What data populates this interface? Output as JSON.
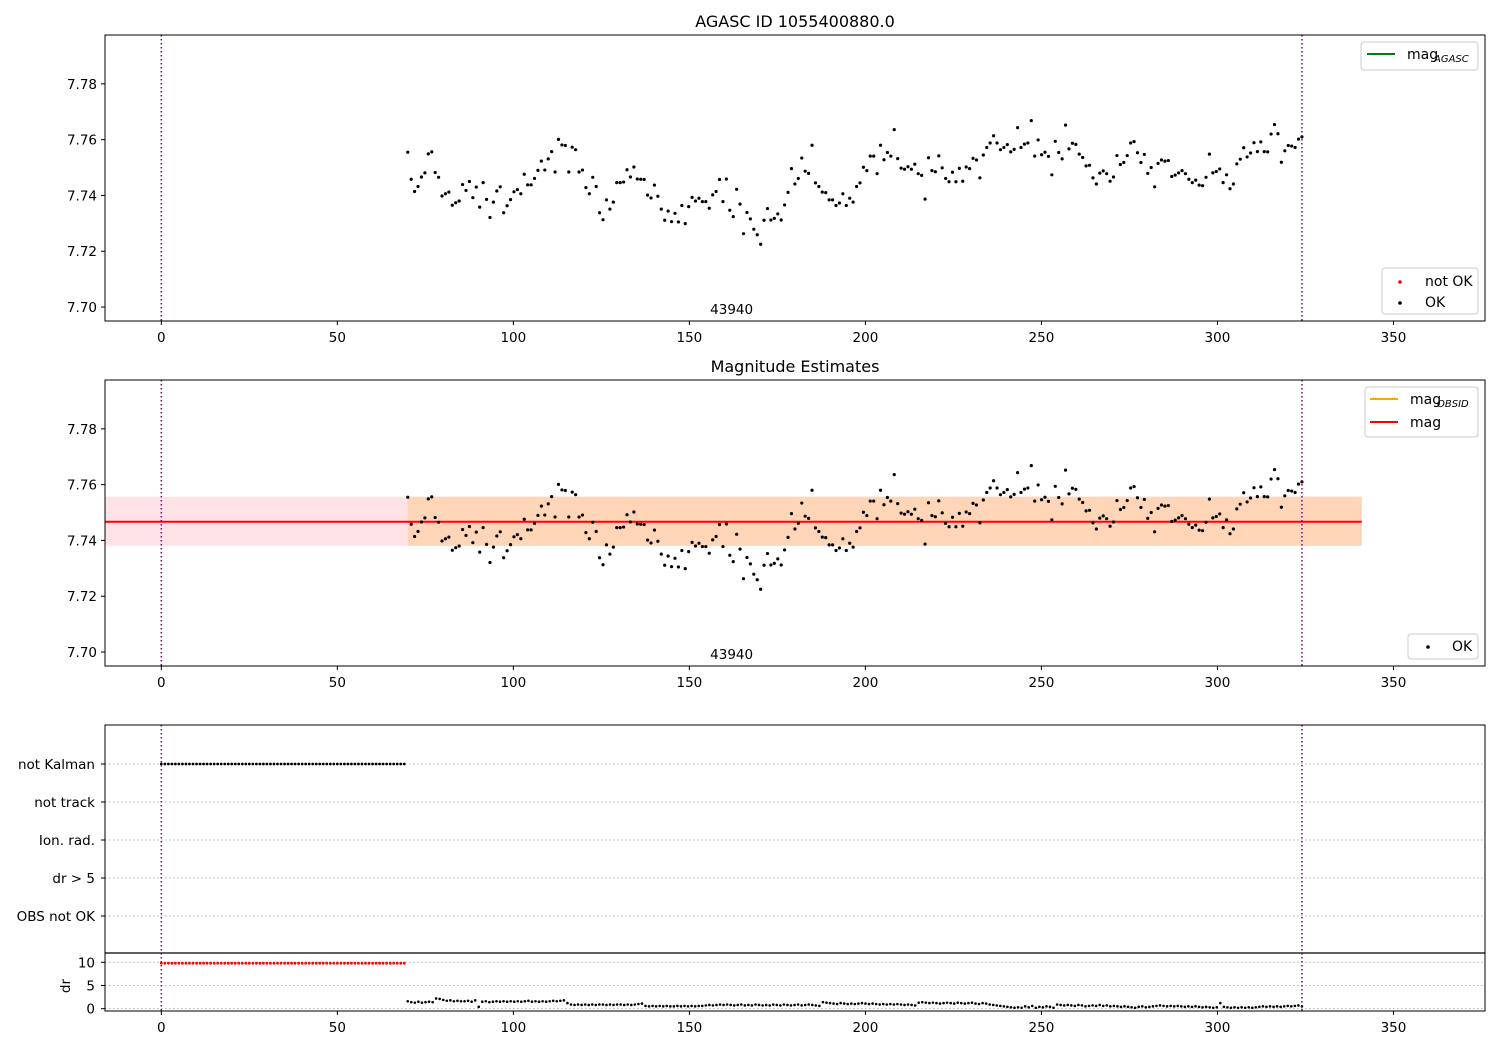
{
  "chart_data": [
    {
      "type": "scatter",
      "title": "AGASC ID 1055400880.0",
      "xlim": [
        -16,
        376
      ],
      "ylim": [
        7.695,
        7.7975
      ],
      "xticks": [
        0,
        50,
        100,
        150,
        200,
        250,
        300,
        350
      ],
      "yticks": [
        "7.70",
        "7.72",
        "7.74",
        "7.76",
        "7.78"
      ],
      "vlines": [
        0,
        324
      ],
      "annotation": {
        "text": "43940",
        "x": 162,
        "y": 7.6975
      },
      "legend_upper": [
        {
          "label": "mag",
          "sub": "AGASC",
          "color": "#008000"
        }
      ],
      "legend_lower": [
        {
          "label": "not OK",
          "color": "#ff0000"
        },
        {
          "label": "OK",
          "color": "#000000"
        }
      ],
      "series": [
        {
          "name": "OK",
          "color": "#000000",
          "x_start": 70,
          "x_end": 324,
          "y": [
            7.7555,
            7.7458,
            7.7414,
            7.7432,
            7.7466,
            7.7481,
            7.7549,
            7.7556,
            7.7482,
            7.7465,
            7.7398,
            7.7406,
            7.7412,
            7.7365,
            7.7374,
            7.738,
            7.7439,
            7.7418,
            7.745,
            7.7392,
            7.743,
            7.7358,
            7.7446,
            7.7386,
            7.7321,
            7.7376,
            7.7416,
            7.7431,
            7.7338,
            7.7363,
            7.7385,
            7.7413,
            7.7421,
            7.7406,
            7.7476,
            7.7438,
            7.7438,
            7.7461,
            7.749,
            7.7523,
            7.7491,
            7.7531,
            7.7557,
            7.7484,
            7.7601,
            7.7581,
            7.7579,
            7.7484,
            7.7573,
            7.7564,
            7.7484,
            7.7491,
            7.7428,
            7.7406,
            7.7465,
            7.7432,
            7.7338,
            7.7313,
            7.7384,
            7.7351,
            7.7376,
            7.7446,
            7.7446,
            7.7448,
            7.7492,
            7.7466,
            7.7502,
            7.7459,
            7.7458,
            7.7457,
            7.7401,
            7.7391,
            7.7437,
            7.7397,
            7.7351,
            7.7311,
            7.7344,
            7.7306,
            7.7336,
            7.7305,
            7.7364,
            7.7299,
            7.736,
            7.7393,
            7.738,
            7.739,
            7.7378,
            7.7378,
            7.7354,
            7.7402,
            7.7414,
            7.7457,
            7.7378,
            7.7459,
            7.7347,
            7.7324,
            7.7422,
            7.7369,
            7.7263,
            7.7339,
            7.7316,
            7.7279,
            7.7259,
            7.7225,
            7.7311,
            7.7353,
            7.7312,
            7.7318,
            7.7334,
            7.7312,
            7.7366,
            7.7411,
            7.7496,
            7.7441,
            7.7461,
            7.7534,
            7.7487,
            7.7479,
            7.758,
            7.7445,
            7.7432,
            7.7412,
            7.741,
            7.7384,
            7.7384,
            7.7364,
            7.7373,
            7.7406,
            7.7364,
            7.739,
            7.7376,
            7.7432,
            7.7445,
            7.7501,
            7.7489,
            7.7541,
            7.7541,
            7.7478,
            7.758,
            7.7528,
            7.7554,
            7.7541,
            7.7636,
            7.7532,
            7.7498,
            7.7494,
            7.7503,
            7.7494,
            7.7512,
            7.7478,
            7.7472,
            7.7387,
            7.7535,
            7.7489,
            7.7485,
            7.7542,
            7.7499,
            7.7461,
            7.7449,
            7.7483,
            7.7449,
            7.7497,
            7.7451,
            7.7502,
            7.7496,
            7.7533,
            7.7527,
            7.7463,
            7.7545,
            7.7572,
            7.7588,
            7.7614,
            7.7588,
            7.7564,
            7.7572,
            7.7582,
            7.7556,
            7.7565,
            7.7643,
            7.7572,
            7.7584,
            7.7588,
            7.7668,
            7.7541,
            7.7599,
            7.7546,
            7.7555,
            7.754,
            7.7474,
            7.7594,
            7.7554,
            7.7531,
            7.7652,
            7.7567,
            7.7587,
            7.7583,
            7.7548,
            7.7536,
            7.7506,
            7.7508,
            7.7463,
            7.7441,
            7.748,
            7.7488,
            7.7478,
            7.7451,
            7.7466,
            7.7543,
            7.7511,
            7.7518,
            7.7543,
            7.7588,
            7.7593,
            7.7553,
            7.7518,
            7.7547,
            7.7479,
            7.75,
            7.7431,
            7.7515,
            7.7527,
            7.7523,
            7.7525,
            7.7468,
            7.7473,
            7.7481,
            7.7489,
            7.7478,
            7.7458,
            7.7446,
            7.7455,
            7.7437,
            7.7435,
            7.7465,
            7.7548,
            7.7481,
            7.7486,
            7.7495,
            7.7446,
            7.7474,
            7.7424,
            7.7441,
            7.7513,
            7.753,
            7.7571,
            7.7538,
            7.7552,
            7.7589,
            7.7557,
            7.7592,
            7.7557,
            7.7556,
            7.762,
            7.7654,
            7.7621,
            7.7519,
            7.756,
            7.7579,
            7.7577,
            7.7572,
            7.7602,
            7.761
          ]
        }
      ]
    },
    {
      "type": "scatter",
      "title": "Magnitude Estimates",
      "xlim": [
        -16,
        376
      ],
      "ylim": [
        7.695,
        7.7975
      ],
      "xticks": [
        0,
        50,
        100,
        150,
        200,
        250,
        300,
        350
      ],
      "yticks": [
        "7.70",
        "7.72",
        "7.74",
        "7.76",
        "7.78"
      ],
      "vlines": [
        0,
        324
      ],
      "annotation": {
        "text": "43940",
        "x": 162,
        "y": 7.6975
      },
      "mag": {
        "value": 7.7467,
        "low": 7.7381,
        "high": 7.7557,
        "x_range": [
          -16,
          341
        ],
        "color": "#ff0000",
        "band_color": "#ffb6c1"
      },
      "mag_obsid": {
        "value": 7.7467,
        "low": 7.7381,
        "high": 7.7557,
        "x_range": [
          70,
          341
        ],
        "color": "#ffa500"
      },
      "legend_upper": [
        {
          "label": "mag",
          "sub": "OBSID",
          "color": "#ffa500"
        },
        {
          "label": "mag",
          "sub": "",
          "color": "#ff0000"
        }
      ],
      "legend_lower": [
        {
          "label": "OK",
          "color": "#000000"
        }
      ],
      "series": [
        {
          "name": "OK",
          "color": "#000000",
          "x_start": 70,
          "x_end": 324,
          "y_ref": 0
        }
      ]
    },
    {
      "type": "scatter",
      "categories": [
        "not Kalman",
        "not track",
        "Ion. rad.",
        "dr > 5",
        "OBS not OK"
      ],
      "xlim": [
        -16,
        376
      ],
      "vlines": [
        0,
        324
      ],
      "flags": [
        {
          "category": "not Kalman",
          "x_start": 0,
          "x_end": 69
        }
      ],
      "dr": {
        "ylabel": "dr",
        "ylim": [
          -0.5,
          12
        ],
        "yticks": [
          0,
          5,
          10
        ],
        "xticks": [
          0,
          50,
          100,
          150,
          200,
          250,
          300,
          350
        ],
        "red_points": {
          "x_start": 0,
          "x_end": 69,
          "y": 9.8
        },
        "black_points": {
          "x_start": 70,
          "x_end": 324,
          "y": [
            1.6,
            1.4,
            1.3,
            1.5,
            1.3,
            1.4,
            1.5,
            1.4,
            2.2,
            2.1,
            1.9,
            1.7,
            1.8,
            1.6,
            1.7,
            1.6,
            1.6,
            1.7,
            1.5,
            1.8,
            0.4,
            1.5,
            1.6,
            1.4,
            1.5,
            1.6,
            1.5,
            1.6,
            1.5,
            1.6,
            1.5,
            1.6,
            1.5,
            1.6,
            1.7,
            1.5,
            1.6,
            1.5,
            1.6,
            1.5,
            1.6,
            1.7,
            1.6,
            1.7,
            1.8,
            1.2,
            0.9,
            0.8,
            0.9,
            0.8,
            0.9,
            0.8,
            0.9,
            0.8,
            0.9,
            0.9,
            0.8,
            0.9,
            0.8,
            0.9,
            0.9,
            0.8,
            0.9,
            0.8,
            0.9,
            1.0,
            1.1,
            0.6,
            0.5,
            0.6,
            0.5,
            0.6,
            0.5,
            0.6,
            0.5,
            0.5,
            0.6,
            0.5,
            0.6,
            0.5,
            0.6,
            0.5,
            0.6,
            0.6,
            0.7,
            0.8,
            0.7,
            0.8,
            0.9,
            0.8,
            0.9,
            0.8,
            0.7,
            0.8,
            0.9,
            0.7,
            0.8,
            0.7,
            0.9,
            0.8,
            0.7,
            0.8,
            0.7,
            0.9,
            0.8,
            0.7,
            0.9,
            0.8,
            0.7,
            0.8,
            0.9,
            0.7,
            0.8,
            0.9,
            0.8,
            0.7,
            0.6,
            1.4,
            1.3,
            1.2,
            1.1,
            1.0,
            1.2,
            1.1,
            1.0,
            1.1,
            1.0,
            1.1,
            1.2,
            1.1,
            1.0,
            1.1,
            1.0,
            0.9,
            1.0,
            0.9,
            1.0,
            0.9,
            1.0,
            0.9,
            0.8,
            0.9,
            0.8,
            0.7,
            1.3,
            1.4,
            1.3,
            1.2,
            1.3,
            1.2,
            1.1,
            1.2,
            1.3,
            1.2,
            1.1,
            1.3,
            1.2,
            1.1,
            1.2,
            1.3,
            1.1,
            1.0,
            1.2,
            1.1,
            0.9,
            0.8,
            0.7,
            0.6,
            0.5,
            0.4,
            0.3,
            0.2,
            0.3,
            0.2,
            0.5,
            0.3,
            0.6,
            0.2,
            0.4,
            0.3,
            0.5,
            0.4,
            0.2,
            0.9,
            0.8,
            0.7,
            0.8,
            0.7,
            0.6,
            0.8,
            0.7,
            0.5,
            0.6,
            0.7,
            0.6,
            0.8,
            0.6,
            0.7,
            0.5,
            0.6,
            0.5,
            0.4,
            0.5,
            0.4,
            0.3,
            0.2,
            0.4,
            0.5,
            0.3,
            0.4,
            0.5,
            0.6,
            0.7,
            0.6,
            0.5,
            0.6,
            0.5,
            0.6,
            0.5,
            0.4,
            0.5,
            0.4,
            0.5,
            0.4,
            0.3,
            0.4,
            0.3,
            0.2,
            0.3,
            1.2,
            0.4,
            0.3,
            0.2,
            0.3,
            0.2,
            0.3,
            0.2,
            0.3,
            0.2,
            0.3,
            0.4,
            0.5,
            0.4,
            0.5,
            0.4,
            0.5,
            0.4,
            0.5,
            0.6,
            0.5,
            0.6,
            0.7,
            0.5
          ]
        }
      }
    }
  ]
}
